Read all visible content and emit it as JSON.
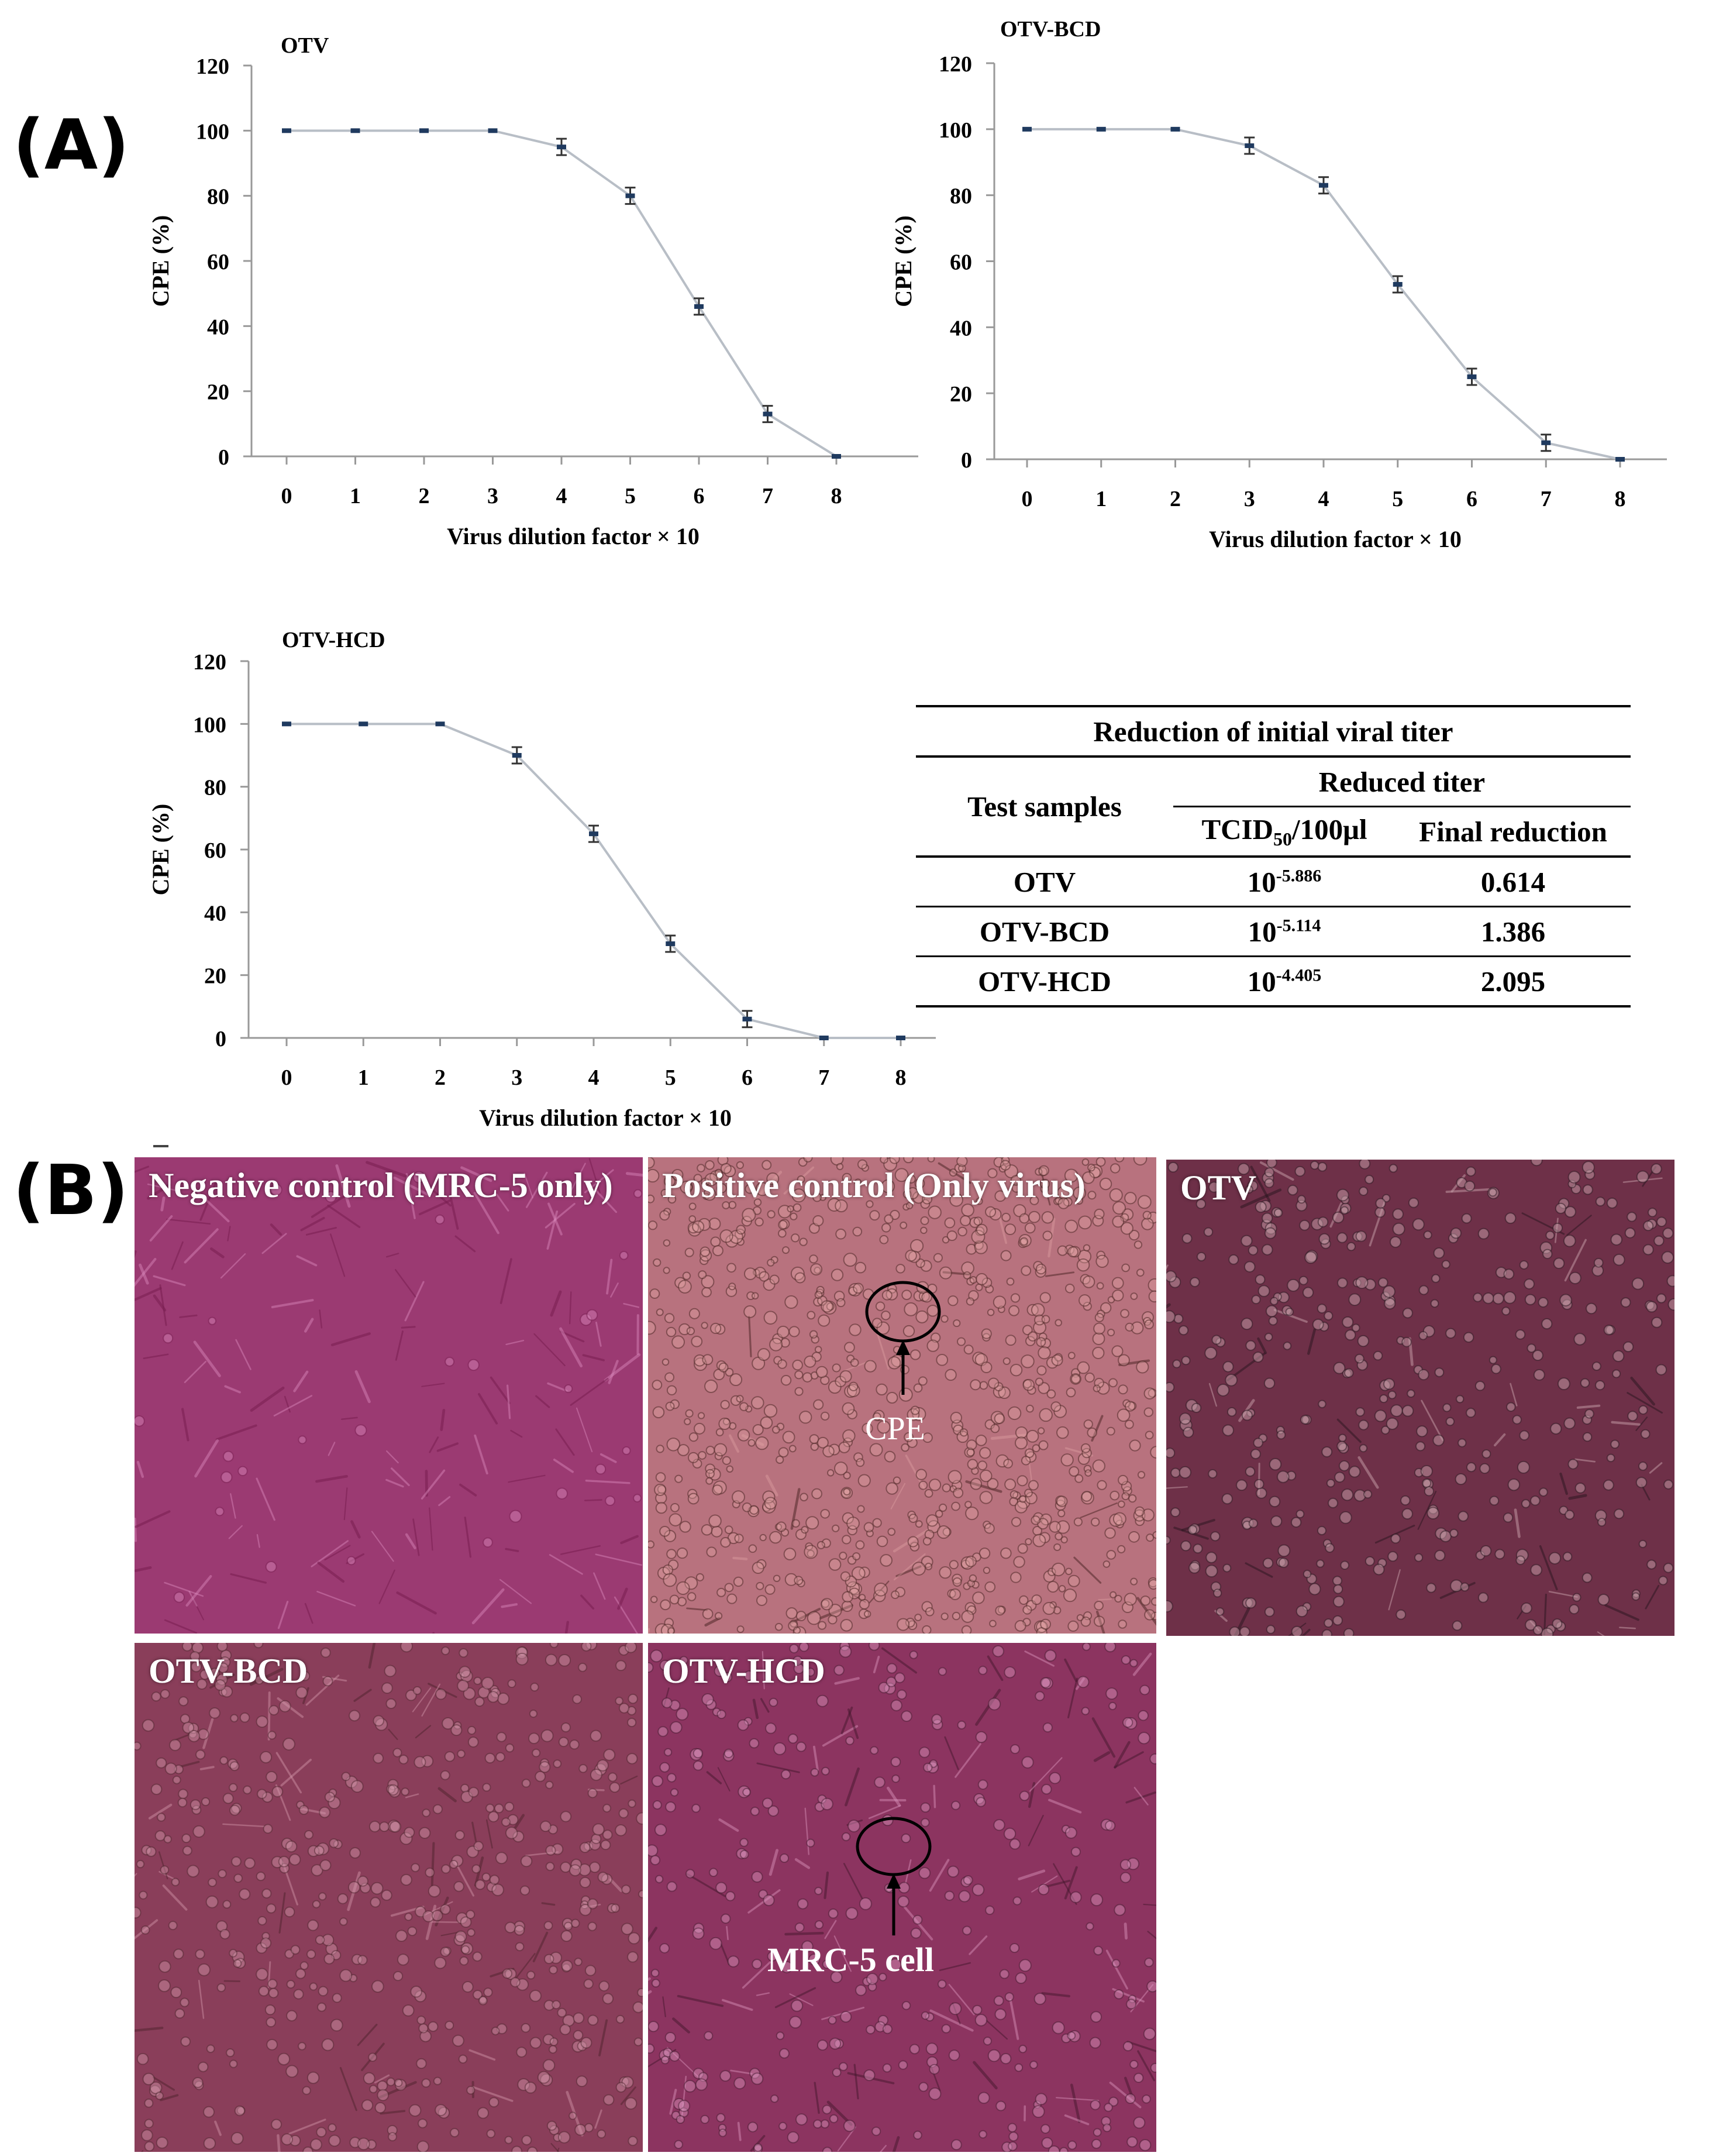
{
  "panels": {
    "a": "(A)",
    "b": "(B)"
  },
  "chart_data": [
    {
      "type": "line",
      "title": "OTV",
      "xlabel": "Virus dilution factor × 10",
      "ylabel": "CPE (%)",
      "x": [
        0,
        1,
        2,
        3,
        4,
        5,
        6,
        7,
        8
      ],
      "y": [
        100,
        100,
        100,
        100,
        95,
        80,
        46,
        13,
        0
      ],
      "ylim": [
        0,
        120
      ],
      "yticks": [
        0,
        20,
        40,
        60,
        80,
        100,
        120
      ],
      "error_bars": true,
      "line_color": "#b8bec6",
      "marker_color": "#1f3a5f"
    },
    {
      "type": "line",
      "title": "OTV-BCD",
      "xlabel": "Virus dilution factor × 10",
      "ylabel": "CPE (%)",
      "x": [
        0,
        1,
        2,
        3,
        4,
        5,
        6,
        7,
        8
      ],
      "y": [
        100,
        100,
        100,
        95,
        83,
        53,
        25,
        5,
        0
      ],
      "ylim": [
        0,
        120
      ],
      "yticks": [
        0,
        20,
        40,
        60,
        80,
        100,
        120
      ],
      "error_bars": true,
      "line_color": "#b8bec6",
      "marker_color": "#1f3a5f"
    },
    {
      "type": "line",
      "title": "OTV-HCD",
      "xlabel": "Virus dilution factor × 10",
      "ylabel": "CPE (%)",
      "x": [
        0,
        1,
        2,
        3,
        4,
        5,
        6,
        7,
        8
      ],
      "y": [
        100,
        100,
        100,
        90,
        65,
        30,
        6,
        0,
        0
      ],
      "ylim": [
        0,
        120
      ],
      "yticks": [
        0,
        20,
        40,
        60,
        80,
        100,
        120
      ],
      "error_bars": true,
      "line_color": "#b8bec6",
      "marker_color": "#1f3a5f"
    },
    {
      "type": "table",
      "title": "Reduction of initial viral titer",
      "header_row_label": "Test samples",
      "group_header": "Reduced titer",
      "col_titer_base": "TCID",
      "col_titer_sub": "50",
      "col_titer_rest": "/100μl",
      "col_final": "Final reduction",
      "rows": [
        {
          "sample": "OTV",
          "base": "10",
          "exp": "-5.886",
          "final": "0.614"
        },
        {
          "sample": "OTV-BCD",
          "base": "10",
          "exp": "-5.114",
          "final": "1.386"
        },
        {
          "sample": "OTV-HCD",
          "base": "10",
          "exp": "-4.405",
          "final": "2.095"
        }
      ]
    }
  ],
  "micrographs": [
    {
      "title": "Negative control (MRC-5 only)",
      "bg": "#9b3a72"
    },
    {
      "title": "Positive control (Only virus)",
      "bg": "#b8727e",
      "annotation": "CPE"
    },
    {
      "title": "OTV",
      "bg": "#6e3048"
    },
    {
      "title": "OTV-BCD",
      "bg": "#8a3e5a"
    },
    {
      "title": "OTV-HCD",
      "bg": "#8c3460",
      "annotation": "MRC-5 cell"
    }
  ]
}
